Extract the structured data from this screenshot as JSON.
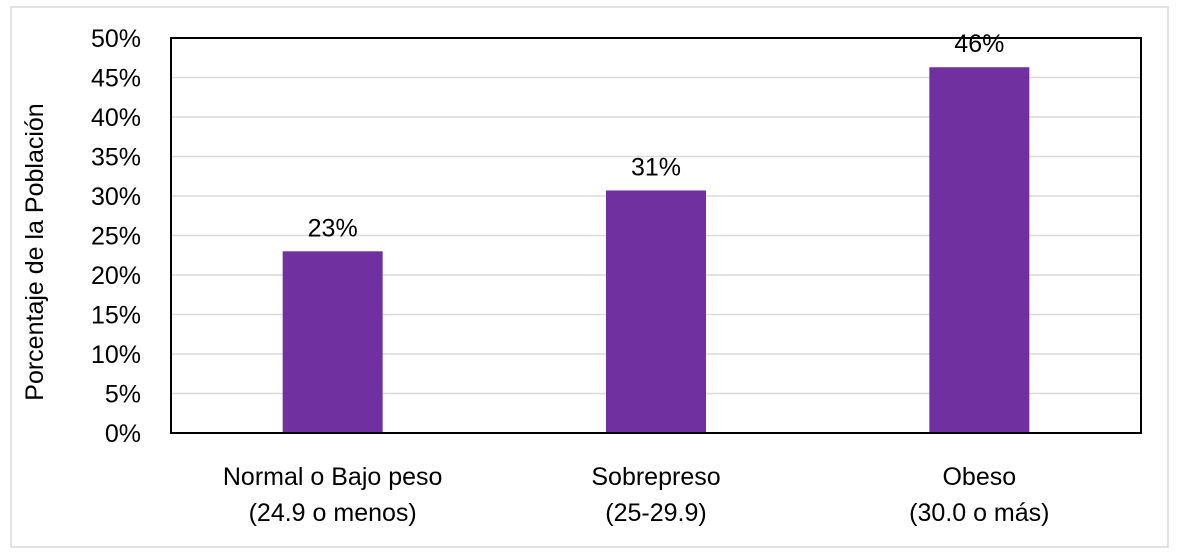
{
  "chart_data": {
    "type": "bar",
    "categories": [
      [
        "Normal o Bajo peso",
        "(24.9 o menos)"
      ],
      [
        "Sobrepreso",
        "(25-29.9)"
      ],
      [
        "Obeso",
        "(30.0 o más)"
      ]
    ],
    "values": [
      23,
      30.7,
      46.3
    ],
    "value_labels": [
      "23%",
      "31%",
      "46%"
    ],
    "ylabel": "Porcentaje de la Población",
    "ylim": [
      0,
      50
    ],
    "yticks": [
      0,
      5,
      10,
      15,
      20,
      25,
      30,
      35,
      40,
      45,
      50
    ],
    "ytick_labels": [
      "0%",
      "5%",
      "10%",
      "15%",
      "20%",
      "25%",
      "30%",
      "35%",
      "40%",
      "45%",
      "50%"
    ],
    "grid": true,
    "bar_color": "#7030a0",
    "grid_color": "#d9d9d9",
    "border_color": "#000000"
  }
}
